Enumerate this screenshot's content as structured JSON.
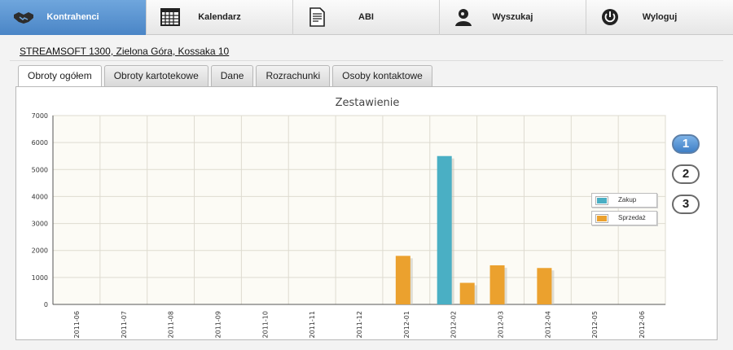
{
  "nav": [
    {
      "label": "Kontrahenci",
      "icon": "handshake-icon",
      "active": true
    },
    {
      "label": "Kalendarz",
      "icon": "calendar-icon",
      "active": false
    },
    {
      "label": "ABI",
      "icon": "document-icon",
      "active": false
    },
    {
      "label": "Wyszukaj",
      "icon": "user-search-icon",
      "active": false
    },
    {
      "label": "Wyloguj",
      "icon": "power-icon",
      "active": false
    }
  ],
  "company": "STREAMSOFT 1300, Zielona Góra, Kossaka 10",
  "tabs": [
    {
      "label": "Obroty ogółem",
      "active": true
    },
    {
      "label": "Obroty kartotekowe",
      "active": false
    },
    {
      "label": "Dane",
      "active": false
    },
    {
      "label": "Rozrachunki",
      "active": false
    },
    {
      "label": "Osoby kontaktowe",
      "active": false
    }
  ],
  "pager": [
    {
      "label": "1",
      "active": true
    },
    {
      "label": "2",
      "active": false
    },
    {
      "label": "3",
      "active": false
    }
  ],
  "colors": {
    "zakup": "#4aafc4",
    "sprzedaz": "#eba12e",
    "plot_bg": "#fcfbf5",
    "grid": "#dedbd0"
  },
  "chart_data": {
    "type": "bar",
    "title": "Zestawienie",
    "categories": [
      "2011-06",
      "2011-07",
      "2011-08",
      "2011-09",
      "2011-10",
      "2011-11",
      "2011-12",
      "2012-01",
      "2012-02",
      "2012-03",
      "2012-04",
      "2012-05",
      "2012-06"
    ],
    "yticks": [
      0,
      1000,
      2000,
      3000,
      4000,
      5000,
      6000,
      7000
    ],
    "ylim": [
      0,
      7000
    ],
    "series": [
      {
        "name": "Zakup",
        "values": [
          0,
          0,
          0,
          0,
          0,
          0,
          0,
          0,
          5500,
          0,
          0,
          0,
          0
        ]
      },
      {
        "name": "Sprzedaż",
        "values": [
          0,
          0,
          0,
          0,
          0,
          0,
          0,
          1800,
          800,
          1450,
          1350,
          0,
          0
        ]
      }
    ],
    "legend_position": "right",
    "grid": true
  }
}
